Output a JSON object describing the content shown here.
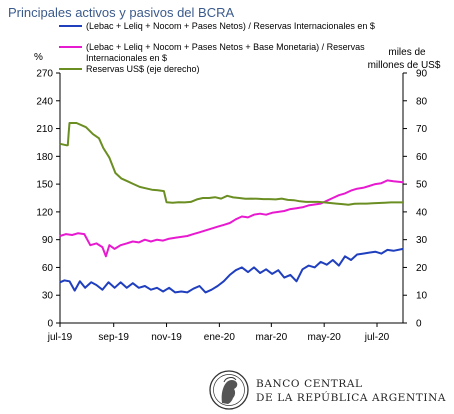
{
  "chart_data": {
    "type": "line",
    "title": "Principales activos y pasivos del BCRA",
    "ylabel_left": "%",
    "ylabel_right_line1": "miles de",
    "ylabel_right_line2": "millones de US$",
    "ylim_left": [
      0,
      270
    ],
    "ylim_right": [
      0,
      90
    ],
    "yticks_left": [
      "0",
      "30",
      "60",
      "90",
      "120",
      "150",
      "180",
      "210",
      "240",
      "270"
    ],
    "yticks_right": [
      "0",
      "10",
      "20",
      "30",
      "40",
      "50",
      "60",
      "70",
      "80",
      "90"
    ],
    "x_range": [
      "2019-07-01",
      "2020-07-31"
    ],
    "xticks": [
      {
        "date": "2019-07-01",
        "label": "jul-19"
      },
      {
        "date": "2019-09-01",
        "label": "sep-19"
      },
      {
        "date": "2019-11-01",
        "label": "nov-19"
      },
      {
        "date": "2020-01-01",
        "label": "ene-20"
      },
      {
        "date": "2020-03-01",
        "label": "mar-20"
      },
      {
        "date": "2020-05-01",
        "label": "may-20"
      },
      {
        "date": "2020-07-01",
        "label": "jul-20"
      }
    ],
    "legend_position": "top-left",
    "series": [
      {
        "name": "(Lebac + Leliq + Nocom + Pases Netos) / Reservas Internacionales en $",
        "color": "#1f3fbf",
        "axis": "left",
        "points": [
          [
            "2019-07-01",
            44
          ],
          [
            "2019-07-06",
            46
          ],
          [
            "2019-07-12",
            45
          ],
          [
            "2019-07-18",
            35
          ],
          [
            "2019-07-24",
            45
          ],
          [
            "2019-07-30",
            38
          ],
          [
            "2019-08-06",
            44
          ],
          [
            "2019-08-12",
            41
          ],
          [
            "2019-08-19",
            36
          ],
          [
            "2019-08-26",
            44
          ],
          [
            "2019-09-02",
            38
          ],
          [
            "2019-09-09",
            44
          ],
          [
            "2019-09-16",
            38
          ],
          [
            "2019-09-23",
            43
          ],
          [
            "2019-09-30",
            38
          ],
          [
            "2019-10-07",
            40
          ],
          [
            "2019-10-14",
            36
          ],
          [
            "2019-10-21",
            38
          ],
          [
            "2019-10-28",
            34
          ],
          [
            "2019-11-04",
            38
          ],
          [
            "2019-11-11",
            33
          ],
          [
            "2019-11-18",
            34
          ],
          [
            "2019-11-25",
            33
          ],
          [
            "2019-12-02",
            37
          ],
          [
            "2019-12-09",
            40
          ],
          [
            "2019-12-16",
            33
          ],
          [
            "2019-12-23",
            36
          ],
          [
            "2019-12-30",
            40
          ],
          [
            "2020-01-06",
            45
          ],
          [
            "2020-01-13",
            52
          ],
          [
            "2020-01-20",
            57
          ],
          [
            "2020-01-27",
            60
          ],
          [
            "2020-02-03",
            55
          ],
          [
            "2020-02-10",
            60
          ],
          [
            "2020-02-17",
            54
          ],
          [
            "2020-02-24",
            58
          ],
          [
            "2020-03-02",
            53
          ],
          [
            "2020-03-09",
            57
          ],
          [
            "2020-03-16",
            49
          ],
          [
            "2020-03-23",
            52
          ],
          [
            "2020-03-30",
            45
          ],
          [
            "2020-04-06",
            58
          ],
          [
            "2020-04-13",
            62
          ],
          [
            "2020-04-20",
            60
          ],
          [
            "2020-04-27",
            66
          ],
          [
            "2020-05-04",
            63
          ],
          [
            "2020-05-11",
            68
          ],
          [
            "2020-05-18",
            62
          ],
          [
            "2020-05-25",
            72
          ],
          [
            "2020-06-01",
            68
          ],
          [
            "2020-06-08",
            74
          ],
          [
            "2020-06-15",
            75
          ],
          [
            "2020-06-22",
            76
          ],
          [
            "2020-06-29",
            77
          ],
          [
            "2020-07-06",
            75
          ],
          [
            "2020-07-13",
            79
          ],
          [
            "2020-07-20",
            78
          ],
          [
            "2020-07-31",
            80
          ]
        ]
      },
      {
        "name": "(Lebac + Leliq + Nocom + Pases Netos + Base Monetaria) / Reservas Internacionales en $",
        "color": "#e81ad0",
        "axis": "left",
        "points": [
          [
            "2019-07-01",
            94
          ],
          [
            "2019-07-08",
            96
          ],
          [
            "2019-07-15",
            95
          ],
          [
            "2019-07-22",
            97
          ],
          [
            "2019-07-29",
            96
          ],
          [
            "2019-08-05",
            84
          ],
          [
            "2019-08-12",
            86
          ],
          [
            "2019-08-19",
            82
          ],
          [
            "2019-08-23",
            72
          ],
          [
            "2019-08-27",
            84
          ],
          [
            "2019-09-02",
            80
          ],
          [
            "2019-09-09",
            84
          ],
          [
            "2019-09-16",
            86
          ],
          [
            "2019-09-23",
            88
          ],
          [
            "2019-09-30",
            87
          ],
          [
            "2019-10-07",
            90
          ],
          [
            "2019-10-14",
            88
          ],
          [
            "2019-10-21",
            90
          ],
          [
            "2019-10-28",
            89
          ],
          [
            "2019-11-04",
            91
          ],
          [
            "2019-11-11",
            92
          ],
          [
            "2019-11-18",
            93
          ],
          [
            "2019-11-25",
            94
          ],
          [
            "2019-12-02",
            96
          ],
          [
            "2019-12-09",
            98
          ],
          [
            "2019-12-16",
            100
          ],
          [
            "2019-12-23",
            102
          ],
          [
            "2019-12-30",
            104
          ],
          [
            "2020-01-06",
            106
          ],
          [
            "2020-01-13",
            108
          ],
          [
            "2020-01-20",
            112
          ],
          [
            "2020-01-27",
            115
          ],
          [
            "2020-02-03",
            114
          ],
          [
            "2020-02-10",
            117
          ],
          [
            "2020-02-17",
            118
          ],
          [
            "2020-02-24",
            117
          ],
          [
            "2020-03-02",
            119
          ],
          [
            "2020-03-09",
            120
          ],
          [
            "2020-03-16",
            121
          ],
          [
            "2020-03-23",
            123
          ],
          [
            "2020-03-30",
            124
          ],
          [
            "2020-04-06",
            125
          ],
          [
            "2020-04-13",
            127
          ],
          [
            "2020-04-20",
            128
          ],
          [
            "2020-04-27",
            129
          ],
          [
            "2020-05-04",
            132
          ],
          [
            "2020-05-11",
            135
          ],
          [
            "2020-05-18",
            138
          ],
          [
            "2020-05-25",
            140
          ],
          [
            "2020-06-01",
            143
          ],
          [
            "2020-06-08",
            145
          ],
          [
            "2020-06-15",
            146
          ],
          [
            "2020-06-22",
            148
          ],
          [
            "2020-06-29",
            150
          ],
          [
            "2020-07-06",
            151
          ],
          [
            "2020-07-13",
            154
          ],
          [
            "2020-07-20",
            153
          ],
          [
            "2020-07-31",
            152
          ]
        ]
      },
      {
        "name": "Reservas US$ (eje derecho)",
        "color": "#6b8e23",
        "axis": "right",
        "points": [
          [
            "2019-07-01",
            64.5
          ],
          [
            "2019-07-08",
            64.0
          ],
          [
            "2019-07-10",
            64.0
          ],
          [
            "2019-07-11",
            68.5
          ],
          [
            "2019-07-12",
            72.0
          ],
          [
            "2019-07-20",
            72.0
          ],
          [
            "2019-07-31",
            70.5
          ],
          [
            "2019-08-08",
            68.0
          ],
          [
            "2019-08-15",
            66.5
          ],
          [
            "2019-08-20",
            63.0
          ],
          [
            "2019-08-27",
            59.5
          ],
          [
            "2019-09-03",
            54.0
          ],
          [
            "2019-09-10",
            52.0
          ],
          [
            "2019-09-17",
            51.0
          ],
          [
            "2019-09-24",
            50.0
          ],
          [
            "2019-10-01",
            49.0
          ],
          [
            "2019-10-08",
            48.5
          ],
          [
            "2019-10-15",
            48.0
          ],
          [
            "2019-10-22",
            47.8
          ],
          [
            "2019-10-29",
            47.5
          ],
          [
            "2019-11-01",
            43.5
          ],
          [
            "2019-11-08",
            43.3
          ],
          [
            "2019-11-15",
            43.5
          ],
          [
            "2019-11-22",
            43.4
          ],
          [
            "2019-11-29",
            43.6
          ],
          [
            "2019-12-06",
            44.5
          ],
          [
            "2019-12-13",
            45.0
          ],
          [
            "2019-12-20",
            45.0
          ],
          [
            "2019-12-27",
            45.3
          ],
          [
            "2020-01-03",
            44.8
          ],
          [
            "2020-01-10",
            45.8
          ],
          [
            "2020-01-17",
            45.2
          ],
          [
            "2020-01-24",
            45.0
          ],
          [
            "2020-01-31",
            44.7
          ],
          [
            "2020-02-07",
            44.8
          ],
          [
            "2020-02-14",
            44.7
          ],
          [
            "2020-02-21",
            44.6
          ],
          [
            "2020-02-28",
            44.6
          ],
          [
            "2020-03-06",
            44.5
          ],
          [
            "2020-03-13",
            44.8
          ],
          [
            "2020-03-20",
            44.3
          ],
          [
            "2020-03-27",
            44.2
          ],
          [
            "2020-04-03",
            43.8
          ],
          [
            "2020-04-10",
            43.6
          ],
          [
            "2020-04-17",
            43.6
          ],
          [
            "2020-04-24",
            43.6
          ],
          [
            "2020-05-01",
            43.4
          ],
          [
            "2020-05-08",
            43.2
          ],
          [
            "2020-05-15",
            43.0
          ],
          [
            "2020-05-22",
            42.8
          ],
          [
            "2020-05-29",
            42.6
          ],
          [
            "2020-06-05",
            42.9
          ],
          [
            "2020-06-12",
            43.0
          ],
          [
            "2020-06-19",
            43.0
          ],
          [
            "2020-06-26",
            43.1
          ],
          [
            "2020-07-03",
            43.2
          ],
          [
            "2020-07-10",
            43.3
          ],
          [
            "2020-07-17",
            43.4
          ],
          [
            "2020-07-31",
            43.4
          ]
        ]
      }
    ]
  },
  "logo": {
    "line1": "BANCO CENTRAL",
    "line2": "DE LA REPÚBLICA ARGENTINA"
  }
}
